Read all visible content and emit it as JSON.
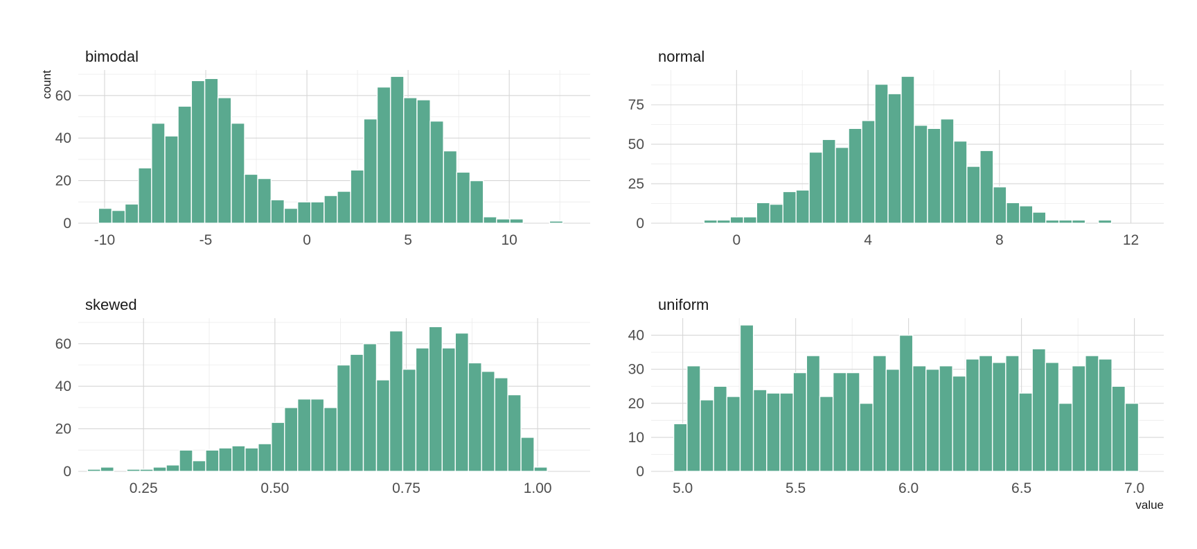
{
  "chart_data": {
    "type": "bar",
    "layout": "facet grid, 2 columns, free scales",
    "xlabel": "value",
    "ylabel": "count",
    "bar_color": "#5aa98f",
    "grid": true,
    "facets": [
      {
        "title": "bimodal",
        "xlim": [
          -11.3,
          14.0
        ],
        "ylim": [
          0,
          72
        ],
        "x_ticks": [
          -10,
          -5,
          0,
          5,
          10
        ],
        "x_tick_labels": [
          "-10",
          "-5",
          "0",
          "5",
          "10"
        ],
        "y_ticks": [
          0,
          20,
          40,
          60
        ],
        "y_tick_labels": [
          "0",
          "20",
          "40",
          "60"
        ],
        "bin_width": 0.656,
        "bin_centers": [
          -9.97,
          -9.31,
          -8.66,
          -8.0,
          -7.35,
          -6.69,
          -6.04,
          -5.38,
          -4.72,
          -4.07,
          -3.41,
          -2.76,
          -2.1,
          -1.45,
          -0.79,
          -0.13,
          0.52,
          1.18,
          1.83,
          2.49,
          3.14,
          3.8,
          4.46,
          5.11,
          5.77,
          6.42,
          7.08,
          7.73,
          8.39,
          9.05,
          9.7,
          10.36,
          11.01,
          11.67,
          12.32,
          12.98
        ],
        "values": [
          7,
          6,
          9,
          26,
          47,
          41,
          55,
          67,
          68,
          59,
          47,
          23,
          21,
          11,
          7,
          10,
          10,
          13,
          15,
          25,
          49,
          64,
          69,
          59,
          58,
          48,
          34,
          24,
          20,
          3,
          2,
          2,
          0,
          0,
          1,
          0
        ]
      },
      {
        "title": "normal",
        "xlim": [
          -2.6,
          13.0
        ],
        "ylim": [
          0,
          97
        ],
        "x_ticks": [
          0,
          4,
          8,
          12
        ],
        "x_tick_labels": [
          "0",
          "4",
          "8",
          "12"
        ],
        "y_ticks": [
          0,
          25,
          50,
          75
        ],
        "y_tick_labels": [
          "0",
          "25",
          "50",
          "75"
        ],
        "bin_width": 0.4,
        "bin_centers": [
          -1.99,
          -1.59,
          -1.19,
          -0.79,
          -0.39,
          0.01,
          0.41,
          0.81,
          1.21,
          1.61,
          2.01,
          2.41,
          2.81,
          3.21,
          3.61,
          4.01,
          4.41,
          4.81,
          5.21,
          5.61,
          6.01,
          6.41,
          6.81,
          7.21,
          7.61,
          8.01,
          8.41,
          8.81,
          9.21,
          9.61,
          10.01,
          10.41,
          10.81,
          11.21,
          11.61,
          12.01
        ],
        "values": [
          0,
          0,
          0,
          2,
          2,
          4,
          4,
          13,
          12,
          20,
          21,
          45,
          53,
          48,
          60,
          65,
          88,
          82,
          93,
          62,
          60,
          66,
          52,
          36,
          46,
          23,
          13,
          11,
          7,
          2,
          2,
          2,
          0,
          2,
          0,
          0
        ]
      },
      {
        "title": "skewed",
        "xlim": [
          0.1258,
          1.1
        ],
        "ylim": [
          0,
          72
        ],
        "x_ticks": [
          0.25,
          0.5,
          0.75,
          1.0
        ],
        "x_tick_labels": [
          "0.25",
          "0.50",
          "0.75",
          "1.00"
        ],
        "y_ticks": [
          0,
          20,
          40,
          60
        ],
        "y_tick_labels": [
          "0",
          "20",
          "40",
          "60"
        ],
        "bin_width": 0.025,
        "bin_centers": [
          0.1558,
          0.1808,
          0.2058,
          0.2308,
          0.2558,
          0.2808,
          0.3058,
          0.3308,
          0.3558,
          0.3808,
          0.4058,
          0.4308,
          0.4558,
          0.4808,
          0.5058,
          0.5308,
          0.5558,
          0.5808,
          0.6058,
          0.6308,
          0.6558,
          0.6808,
          0.7058,
          0.7308,
          0.7558,
          0.7808,
          0.8058,
          0.8308,
          0.8558,
          0.8808,
          0.9058,
          0.9308,
          0.9558,
          0.9808,
          1.0058,
          1.0308
        ],
        "values": [
          1,
          2,
          0,
          1,
          1,
          2,
          3,
          10,
          5,
          10,
          11,
          12,
          11,
          13,
          23,
          30,
          34,
          34,
          30,
          50,
          55,
          60,
          43,
          66,
          48,
          58,
          68,
          58,
          65,
          51,
          47,
          44,
          36,
          16,
          2,
          0
        ]
      },
      {
        "title": "uniform",
        "xlim": [
          4.86,
          7.13
        ],
        "ylim": [
          0,
          45
        ],
        "x_ticks": [
          5.0,
          5.5,
          6.0,
          6.5,
          7.0
        ],
        "x_tick_labels": [
          "5.0",
          "5.5",
          "6.0",
          "6.5",
          "7.0"
        ],
        "y_ticks": [
          0,
          10,
          20,
          30,
          40
        ],
        "y_tick_labels": [
          "0",
          "10",
          "20",
          "30",
          "40"
        ],
        "bin_width": 0.0588,
        "bin_centers": [
          4.9895,
          5.0483,
          5.1071,
          5.1659,
          5.2247,
          5.2835,
          5.3423,
          5.4011,
          5.4599,
          5.5187,
          5.5775,
          5.6363,
          5.6951,
          5.7539,
          5.8127,
          5.8715,
          5.9303,
          5.9891,
          6.0479,
          6.1067,
          6.1655,
          6.2243,
          6.2831,
          6.3419,
          6.4007,
          6.4595,
          6.5183,
          6.5771,
          6.6359,
          6.6947,
          6.7535,
          6.8123,
          6.8711,
          6.9299,
          6.9887
        ],
        "values": [
          14,
          31,
          21,
          25,
          22,
          43,
          24,
          23,
          23,
          29,
          34,
          22,
          29,
          29,
          20,
          34,
          30,
          40,
          31,
          30,
          31,
          28,
          33,
          34,
          32,
          34,
          23,
          36,
          32,
          20,
          31,
          34,
          33,
          25,
          20
        ]
      }
    ]
  }
}
